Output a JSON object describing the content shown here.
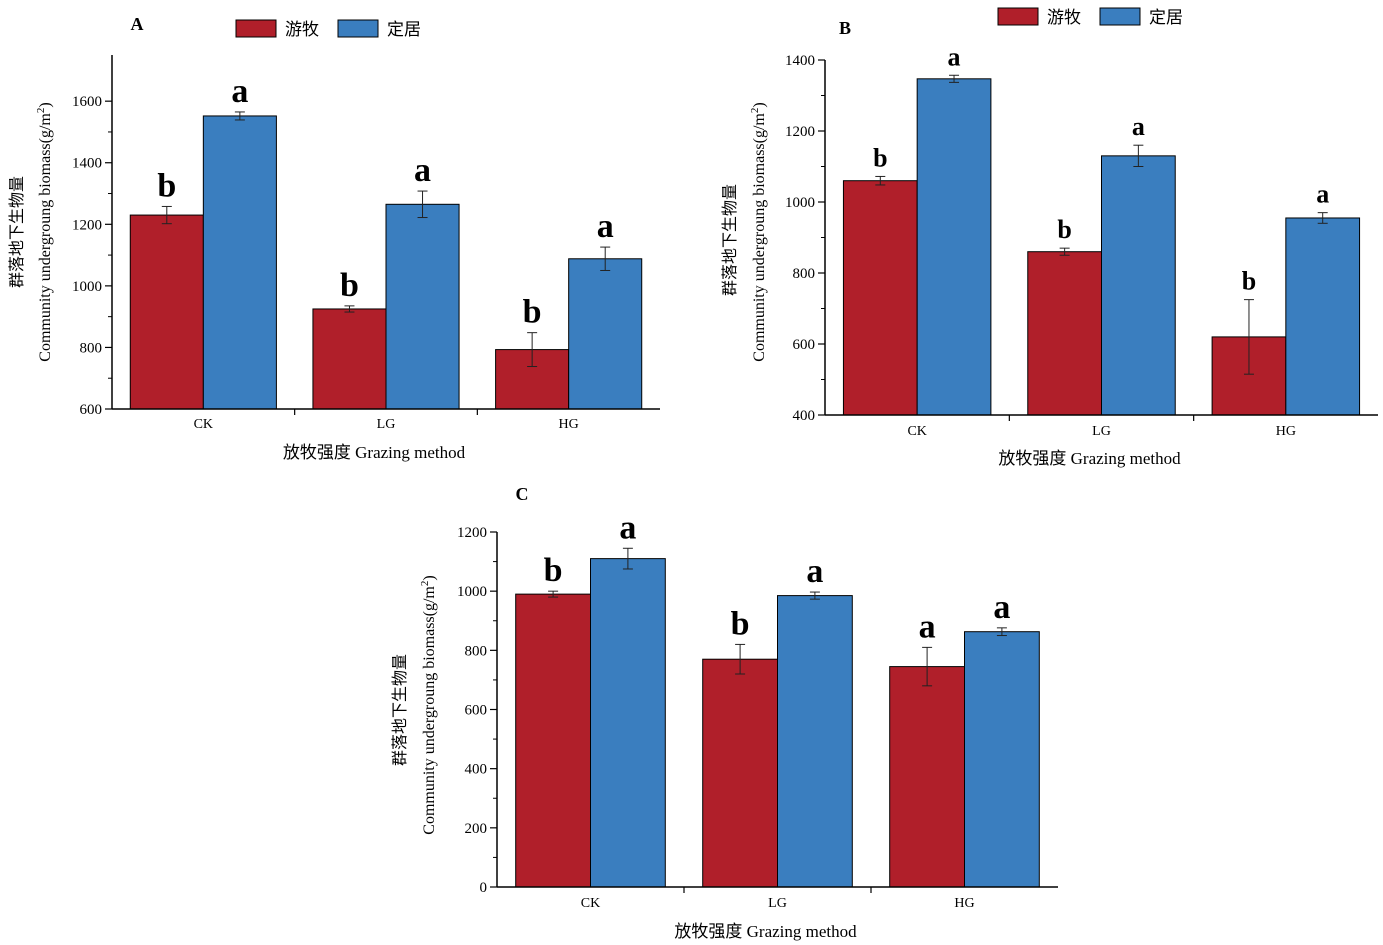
{
  "colors": {
    "nomadic": "#b01f2a",
    "settled": "#3a7ebf",
    "axis": "#000000"
  },
  "chart_data": [
    {
      "type": "bar",
      "panel": "A",
      "categories": [
        "CK",
        "LG",
        "HG"
      ],
      "series": [
        {
          "name": "游牧",
          "values": [
            1230,
            925,
            793
          ],
          "errors": [
            28,
            10,
            55
          ]
        },
        {
          "name": "定居",
          "values": [
            1552,
            1265,
            1088
          ],
          "errors": [
            13,
            43,
            38
          ]
        }
      ],
      "significance": [
        [
          "b",
          "b",
          "b"
        ],
        [
          "a",
          "a",
          "a"
        ]
      ],
      "xlabel": "放牧强度 Grazing method",
      "ylabel_cn": "群落地下生物量",
      "ylabel_en": "Community undergroung biomass(g/m",
      "ylabel_sup": "2",
      "ylabel_end": ")",
      "ylim": [
        600,
        1750
      ],
      "yticks": [
        600,
        800,
        1000,
        1200,
        1400,
        1600
      ],
      "legend": "top"
    },
    {
      "type": "bar",
      "panel": "B",
      "categories": [
        "CK",
        "LG",
        "HG"
      ],
      "series": [
        {
          "name": "游牧",
          "values": [
            1060,
            860,
            620
          ],
          "errors": [
            12,
            10,
            105
          ]
        },
        {
          "name": "定居",
          "values": [
            1347,
            1130,
            955
          ],
          "errors": [
            10,
            30,
            15
          ]
        }
      ],
      "significance": [
        [
          "b",
          "b",
          "b"
        ],
        [
          "a",
          "a",
          "a"
        ]
      ],
      "xlabel": "放牧强度 Grazing method",
      "ylabel_cn": "群落地下生物量",
      "ylabel_en": "Community undergroung biomass(g/m",
      "ylabel_sup": "2",
      "ylabel_end": ")",
      "ylim": [
        400,
        1400
      ],
      "yticks": [
        400,
        600,
        800,
        1000,
        1200,
        1400
      ],
      "legend": "top"
    },
    {
      "type": "bar",
      "panel": "C",
      "categories": [
        "CK",
        "LG",
        "HG"
      ],
      "series": [
        {
          "name": "游牧",
          "values": [
            990,
            770,
            745
          ],
          "errors": [
            10,
            50,
            65
          ]
        },
        {
          "name": "定居",
          "values": [
            1110,
            985,
            863
          ],
          "errors": [
            35,
            12,
            13
          ]
        }
      ],
      "significance": [
        [
          "b",
          "b",
          "a"
        ],
        [
          "a",
          "a",
          "a"
        ]
      ],
      "xlabel": "放牧强度 Grazing method",
      "ylabel_cn": "群落地下生物量",
      "ylabel_en": "Community undergroung biomass(g/m",
      "ylabel_sup": "2",
      "ylabel_end": ")",
      "ylim": [
        0,
        1200
      ],
      "yticks": [
        0,
        200,
        400,
        600,
        800,
        1000,
        1200
      ],
      "legend": "none"
    }
  ]
}
